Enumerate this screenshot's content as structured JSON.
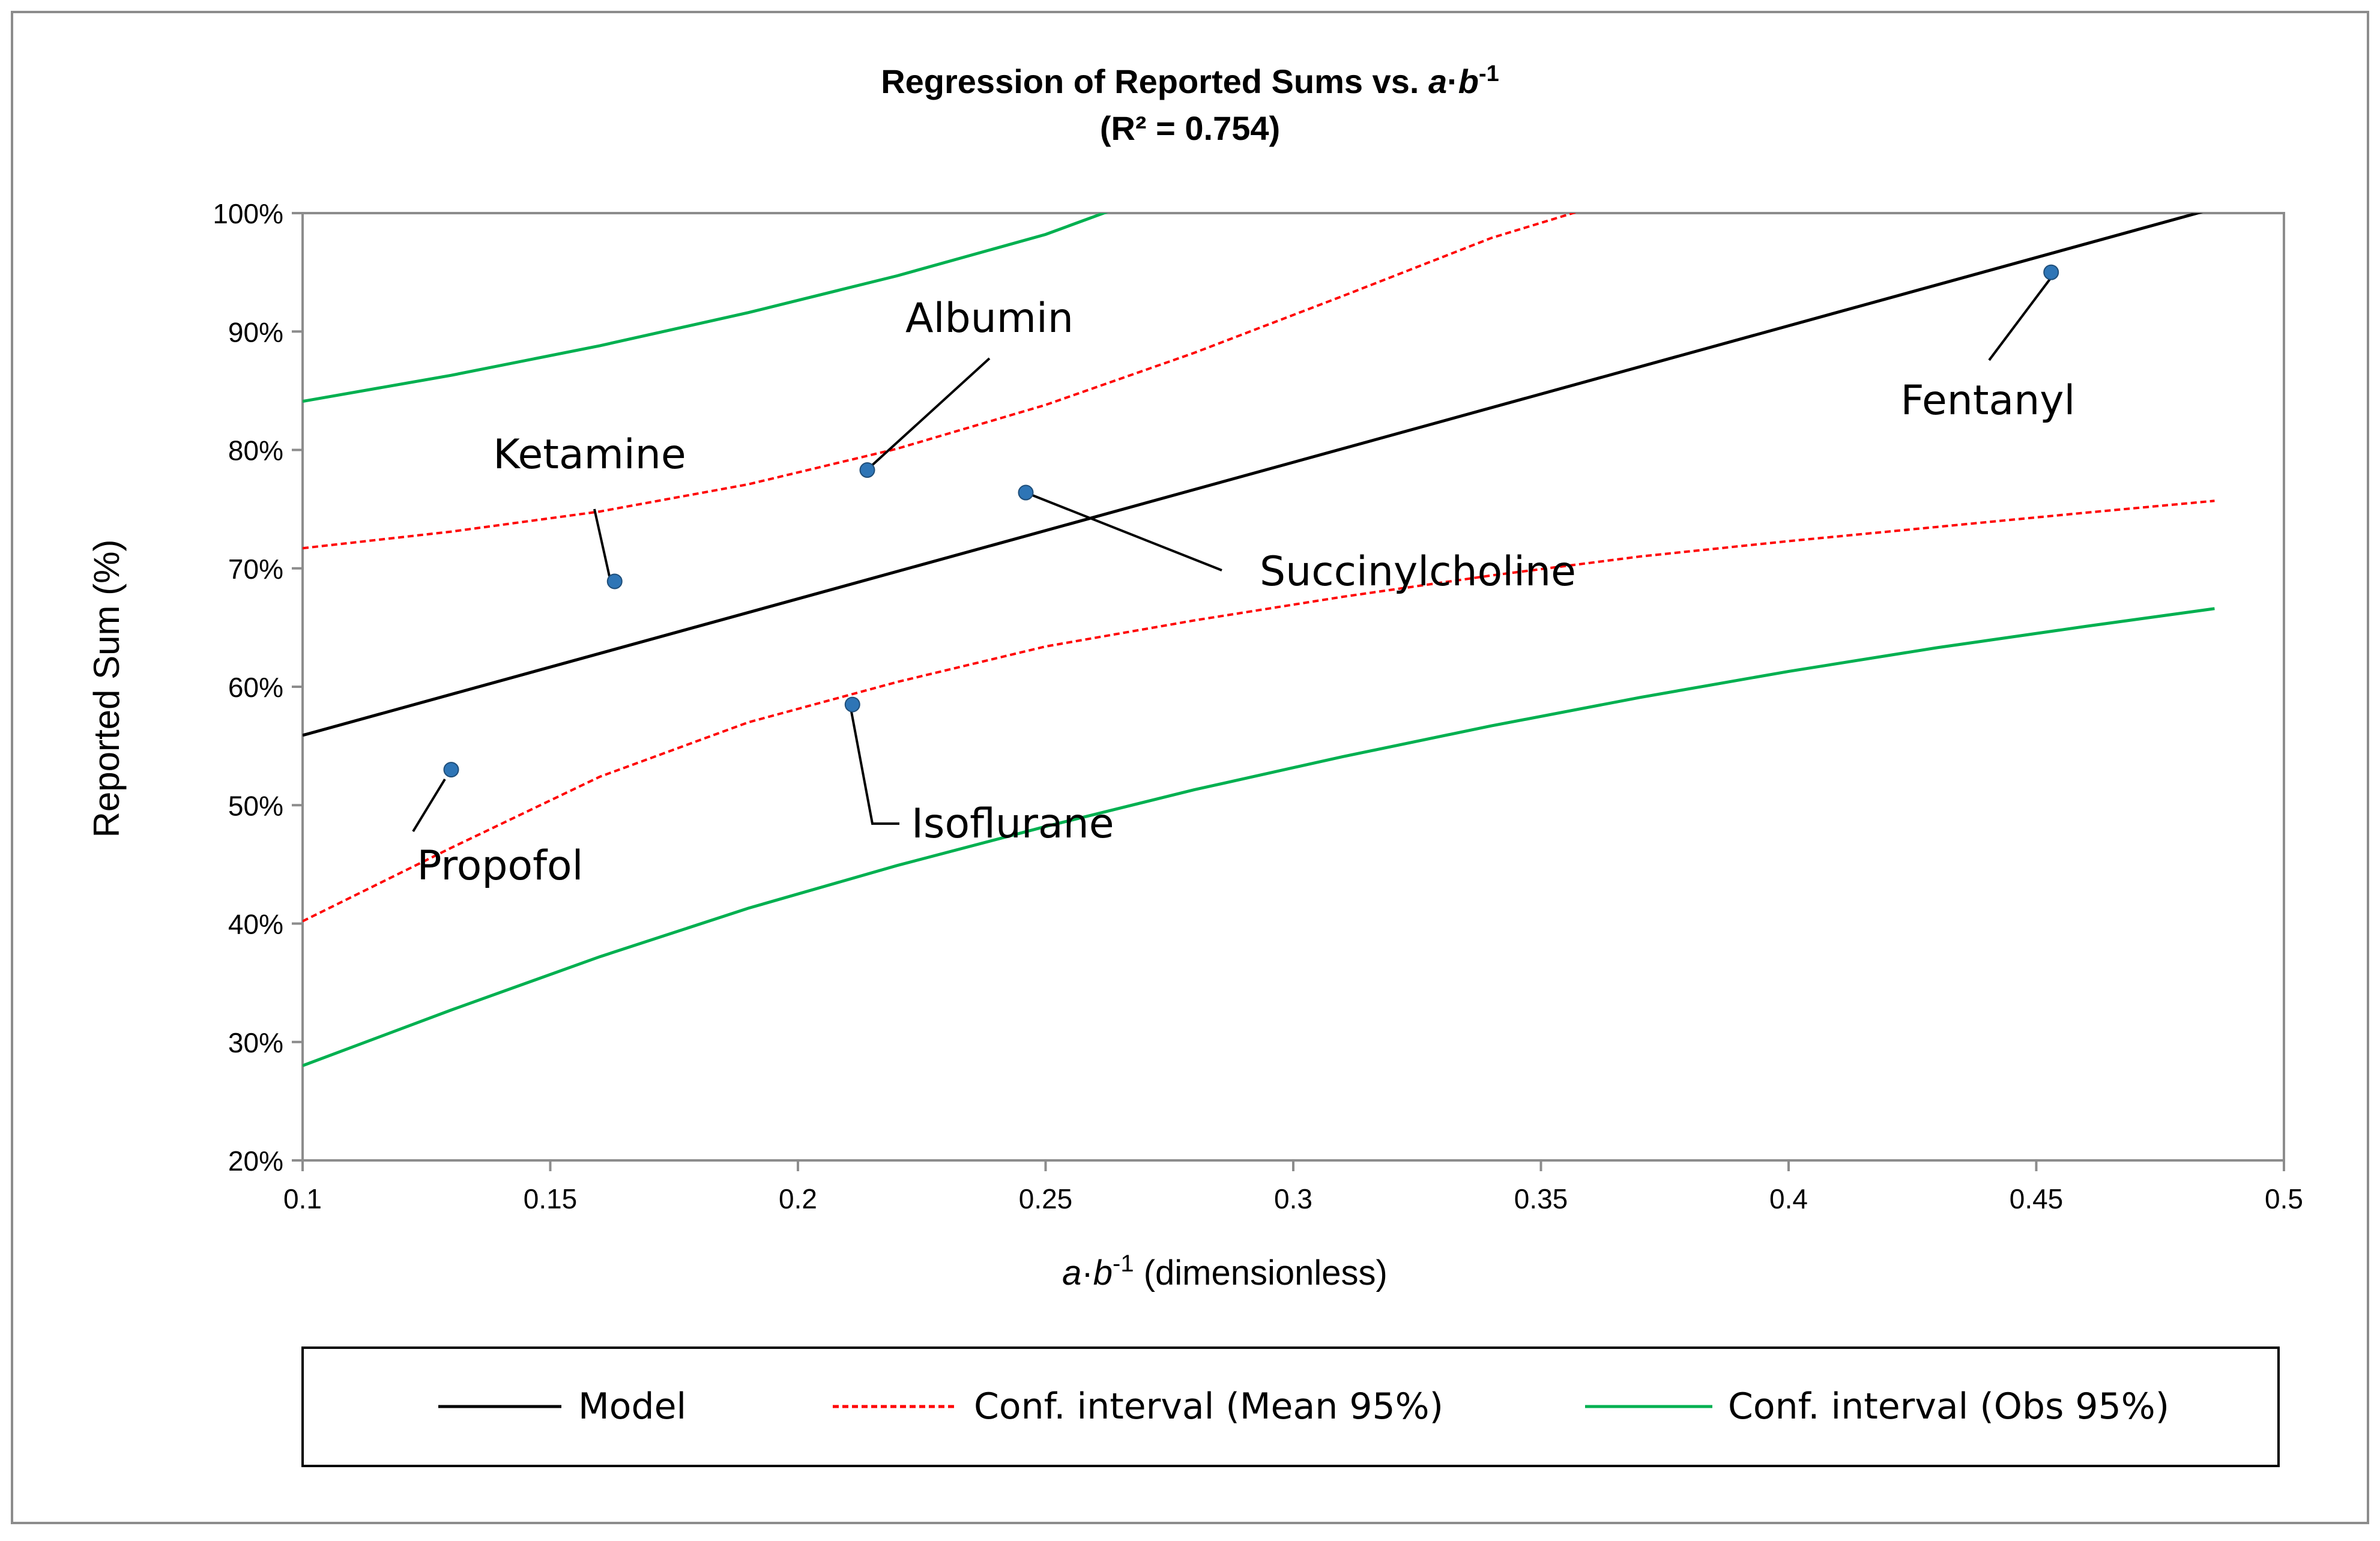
{
  "chart_data": {
    "type": "scatter",
    "title": "Regression of Reported Sums vs.",
    "title_var_a": "a",
    "title_dot": "·",
    "title_var_b": "b",
    "title_sup": "-1",
    "subtitle": "(R² = 0.754)",
    "xlabel_var_a": "a",
    "xlabel_dot": "·",
    "xlabel_var_b": "b",
    "xlabel_sup": "-1",
    "xlabel_rest": "(dimensionless)",
    "ylabel": "Reported Sum (%)",
    "xlim": [
      0.1,
      0.5
    ],
    "ylim": [
      0.2,
      1.0
    ],
    "x_ticks": [
      0.1,
      0.15,
      0.2,
      0.25,
      0.3,
      0.35,
      0.4,
      0.45,
      0.5
    ],
    "x_tick_labels": [
      "0.1",
      "0.15",
      "0.2",
      "0.25",
      "0.3",
      "0.35",
      "0.4",
      "0.45",
      "0.5"
    ],
    "y_ticks": [
      0.2,
      0.3,
      0.4,
      0.5,
      0.6,
      0.7,
      0.8,
      0.9,
      1.0
    ],
    "y_tick_labels": [
      "20%",
      "30%",
      "40%",
      "50%",
      "60%",
      "70%",
      "80%",
      "90%",
      "100%"
    ],
    "grid": false,
    "legend_position": "bottom",
    "points": [
      {
        "label": "Propofol",
        "x": 0.13,
        "y": 0.53
      },
      {
        "label": "Ketamine",
        "x": 0.163,
        "y": 0.689
      },
      {
        "label": "Albumin",
        "x": 0.214,
        "y": 0.783
      },
      {
        "label": "Isoflurane",
        "x": 0.211,
        "y": 0.585
      },
      {
        "label": "Succinylcholine",
        "x": 0.246,
        "y": 0.764
      },
      {
        "label": "Fentanyl",
        "x": 0.453,
        "y": 0.95
      }
    ],
    "point_color": "#2e75b6",
    "series": [
      {
        "name": "Model",
        "style": "solid",
        "color": "#000000",
        "x": [
          0.1,
          0.486
        ],
        "y": [
          0.559,
          1.004
        ]
      },
      {
        "name": "Conf. interval (Mean 95%)",
        "style": "dashed",
        "color": "#ff0000",
        "x": [
          0.1,
          0.13,
          0.16,
          0.19,
          0.22,
          0.25,
          0.28,
          0.31,
          0.34,
          0.358
        ],
        "y": [
          0.717,
          0.731,
          0.748,
          0.771,
          0.801,
          0.838,
          0.882,
          0.93,
          0.979,
          1.002
        ]
      },
      {
        "name": "Conf. interval (Mean 95%)",
        "style": "dashed",
        "color": "#ff0000",
        "x": [
          0.1,
          0.13,
          0.16,
          0.19,
          0.22,
          0.25,
          0.28,
          0.31,
          0.34,
          0.37,
          0.4,
          0.43,
          0.46,
          0.486
        ],
        "y": [
          0.402,
          0.464,
          0.524,
          0.57,
          0.604,
          0.634,
          0.656,
          0.676,
          0.694,
          0.71,
          0.723,
          0.735,
          0.747,
          0.757
        ]
      },
      {
        "name": "Conf. interval (Obs 95%)",
        "style": "solid",
        "color": "#00b050",
        "x": [
          0.1,
          0.13,
          0.16,
          0.19,
          0.22,
          0.25,
          0.263
        ],
        "y": [
          0.841,
          0.863,
          0.888,
          0.916,
          0.947,
          0.982,
          1.002
        ]
      },
      {
        "name": "Conf. interval (Obs 95%)",
        "style": "solid",
        "color": "#00b050",
        "x": [
          0.1,
          0.13,
          0.16,
          0.19,
          0.22,
          0.25,
          0.28,
          0.31,
          0.34,
          0.37,
          0.4,
          0.43,
          0.46,
          0.486
        ],
        "y": [
          0.28,
          0.327,
          0.372,
          0.413,
          0.449,
          0.482,
          0.513,
          0.541,
          0.567,
          0.591,
          0.613,
          0.633,
          0.651,
          0.666
        ]
      }
    ],
    "legend": [
      "Model",
      "Conf. interval (Mean 95%)",
      "Conf. interval (Obs 95%)"
    ]
  }
}
